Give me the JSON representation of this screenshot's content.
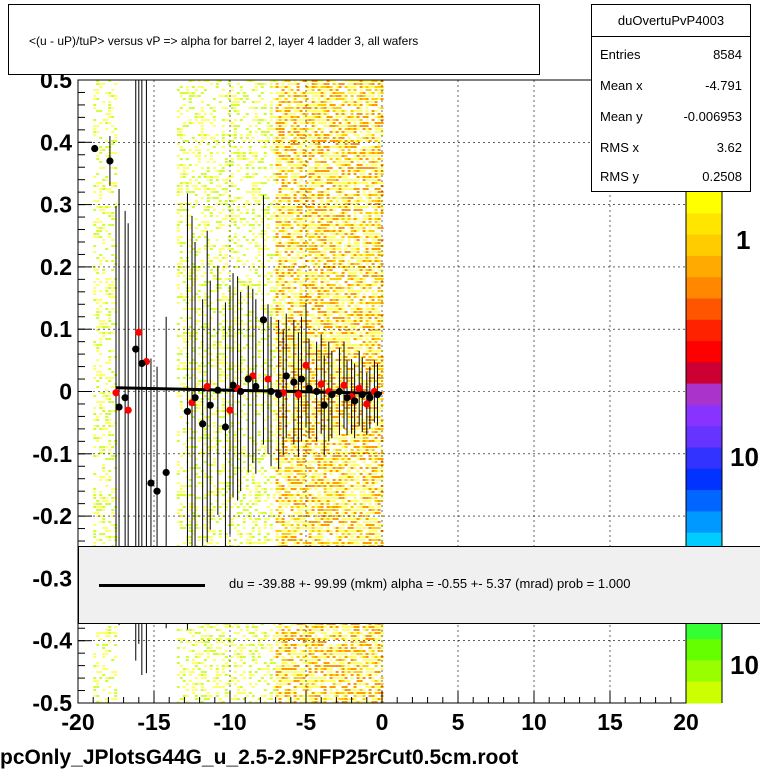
{
  "title": "<(u - uP)/tuP> versus   vP => alpha for barrel 2, layer 4 ladder 3, all wafers",
  "footer": "pcOnly_JPlotsG44G_u_2.5-2.9NFP25rCut0.5cm.root",
  "stats": {
    "name": "duOvertuPvP4003",
    "rows": [
      {
        "key": "Entries",
        "value": "8584"
      },
      {
        "key": "Mean x",
        "value": "-4.791"
      },
      {
        "key": "Mean y",
        "value": "-0.006953"
      },
      {
        "key": "RMS x",
        "value": "3.62"
      },
      {
        "key": "RMS y",
        "value": "0.2508"
      }
    ]
  },
  "fit_text": "du =  -39.88 +- 99.99 (mkm) alpha =   -0.55 +-  5.37 (mrad) prob = 1.000",
  "chart_data": {
    "type": "scatter",
    "xlim": [
      -20,
      20
    ],
    "ylim": [
      -0.5,
      0.5
    ],
    "x_ticks": [
      "-20",
      "-15",
      "-10",
      "-5",
      "0",
      "5",
      "10",
      "15",
      "20"
    ],
    "y_ticks": [
      "-0.5",
      "-0.4",
      "-0.3",
      "-0.2",
      "-0.1",
      "0",
      "0.1",
      "0.2",
      "0.3",
      "0.4",
      "0.5"
    ],
    "grid": true,
    "colorbar_labels": [
      "1",
      "10",
      "10"
    ],
    "colors": {
      "black_points": "#000000",
      "red_points": "#ff0000",
      "fit_line": "#000000"
    },
    "fit_line": {
      "x": [
        -17.5,
        0
      ],
      "y": [
        0.006,
        -0.003
      ]
    },
    "heatmap_bands": [
      [
        -19.0,
        -17.5
      ],
      [
        -13.5,
        -7.0
      ],
      [
        -7.0,
        0
      ]
    ],
    "black_points": [
      [
        -18.9,
        0.39,
        0.0
      ],
      [
        -17.9,
        0.37,
        0.04
      ],
      [
        -17.3,
        -0.025,
        0.35
      ],
      [
        -16.9,
        -0.01,
        0.3
      ],
      [
        -16.2,
        0.068,
        0.5
      ],
      [
        -15.8,
        0.045,
        0.5
      ],
      [
        -15.2,
        -0.147,
        0.2
      ],
      [
        -14.8,
        -0.16,
        0.2
      ],
      [
        -14.2,
        -0.13,
        0.25
      ],
      [
        -12.8,
        -0.032,
        0.35
      ],
      [
        -12.3,
        -0.01,
        0.25
      ],
      [
        -11.8,
        -0.052,
        0.2
      ],
      [
        -11.3,
        -0.022,
        0.2
      ],
      [
        -10.8,
        0.002,
        0.2
      ],
      [
        -10.3,
        -0.057,
        0.2
      ],
      [
        -9.8,
        0.01,
        0.18
      ],
      [
        -9.3,
        0.0,
        0.16
      ],
      [
        -8.8,
        0.02,
        0.15
      ],
      [
        -8.3,
        0.008,
        0.14
      ],
      [
        -7.8,
        0.115,
        0.2
      ],
      [
        -7.3,
        0.0,
        0.12
      ],
      [
        -6.8,
        -0.005,
        0.12
      ],
      [
        -6.3,
        0.025,
        0.1
      ],
      [
        -5.8,
        0.015,
        0.1
      ],
      [
        -5.3,
        0.02,
        0.1
      ],
      [
        -4.8,
        0.005,
        0.08
      ],
      [
        -4.3,
        0.0,
        0.08
      ],
      [
        -3.8,
        -0.022,
        0.08
      ],
      [
        -3.3,
        -0.005,
        0.07
      ],
      [
        -2.8,
        0.0,
        0.07
      ],
      [
        -2.3,
        -0.01,
        0.06
      ],
      [
        -1.8,
        -0.015,
        0.06
      ],
      [
        -1.3,
        -0.005,
        0.06
      ],
      [
        -0.8,
        -0.01,
        0.05
      ],
      [
        -0.3,
        -0.005,
        0.05
      ]
    ],
    "red_points": [
      [
        -17.5,
        -0.002,
        0.3
      ],
      [
        -16.7,
        -0.03,
        0.3
      ],
      [
        -16.0,
        0.095,
        0.5
      ],
      [
        -15.5,
        0.048,
        0.5
      ],
      [
        -12.5,
        -0.018,
        0.3
      ],
      [
        -11.5,
        0.008,
        0.25
      ],
      [
        -10.0,
        -0.03,
        0.2
      ],
      [
        -9.5,
        0.005,
        0.18
      ],
      [
        -8.5,
        0.025,
        0.14
      ],
      [
        -7.5,
        0.02,
        0.12
      ],
      [
        -6.5,
        -0.002,
        0.1
      ],
      [
        -5.5,
        -0.005,
        0.1
      ],
      [
        -5.0,
        0.042,
        0.1
      ],
      [
        -4.0,
        0.012,
        0.08
      ],
      [
        -3.5,
        0.0,
        0.08
      ],
      [
        -2.5,
        0.01,
        0.07
      ],
      [
        -2.0,
        -0.008,
        0.06
      ],
      [
        -1.5,
        0.005,
        0.06
      ],
      [
        -1.0,
        -0.02,
        0.05
      ],
      [
        -0.5,
        0.0,
        0.05
      ]
    ]
  }
}
